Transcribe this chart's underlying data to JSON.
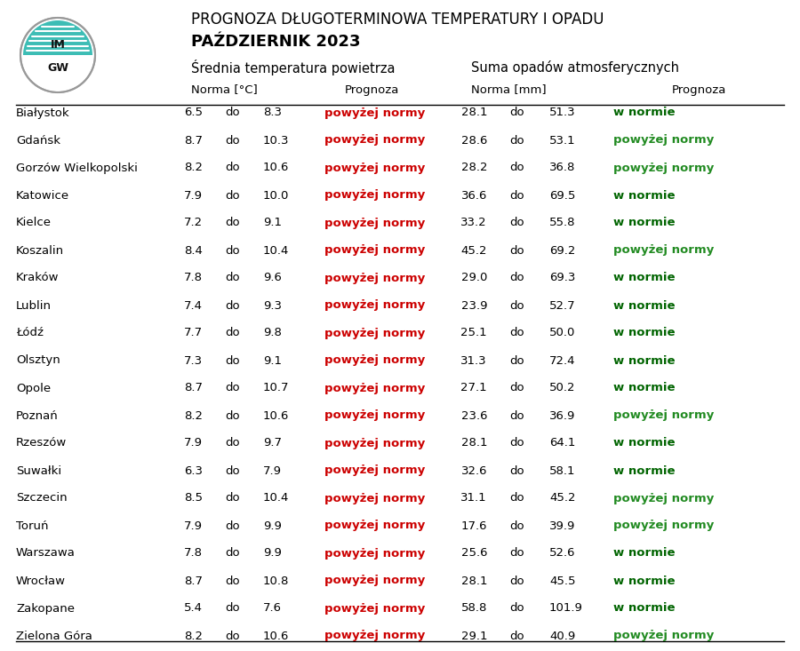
{
  "title_line1": "PROGNOZA DŁUGOTERMINOWA TEMPERATURY I OPADU",
  "title_line2": "PAŹDZIERNIK 2023",
  "subtitle_temp": "Średnia temperatura powietrza",
  "subtitle_precip": "Suma opadów atmosferycznych",
  "col_norma_temp": "Norma [°C]",
  "col_prognoza": "Prognoza",
  "col_norma_precip": "Norma [mm]",
  "col_prognoza2": "Prognoza",
  "cities": [
    "Białystok",
    "Gdańsk",
    "Gorzów Wielkopolski",
    "Katowice",
    "Kielce",
    "Koszalin",
    "Kraków",
    "Lublin",
    "Łódź",
    "Olsztyn",
    "Opole",
    "Poznań",
    "Rzeszów",
    "Suwałki",
    "Szczecin",
    "Toruń",
    "Warszawa",
    "Wrocław",
    "Zakopane",
    "Zielona Góra"
  ],
  "temp_low": [
    6.5,
    8.7,
    8.2,
    7.9,
    7.2,
    8.4,
    7.8,
    7.4,
    7.7,
    7.3,
    8.7,
    8.2,
    7.9,
    6.3,
    8.5,
    7.9,
    7.8,
    8.7,
    5.4,
    8.2
  ],
  "temp_high": [
    8.3,
    10.3,
    10.6,
    10.0,
    9.1,
    10.4,
    9.6,
    9.3,
    9.8,
    9.1,
    10.7,
    10.6,
    9.7,
    7.9,
    10.4,
    9.9,
    9.9,
    10.8,
    7.6,
    10.6
  ],
  "temp_prognoza": [
    "powyżej normy",
    "powyżej normy",
    "powyżej normy",
    "powyżej normy",
    "powyżej normy",
    "powyżej normy",
    "powyżej normy",
    "powyżej normy",
    "powyżej normy",
    "powyżej normy",
    "powyżej normy",
    "powyżej normy",
    "powyżej normy",
    "powyżej normy",
    "powyżej normy",
    "powyżej normy",
    "powyżej normy",
    "powyżej normy",
    "powyżej normy",
    "powyżej normy"
  ],
  "temp_prognoza_colors": [
    "#cc0000",
    "#cc0000",
    "#cc0000",
    "#cc0000",
    "#cc0000",
    "#cc0000",
    "#cc0000",
    "#cc0000",
    "#cc0000",
    "#cc0000",
    "#cc0000",
    "#cc0000",
    "#cc0000",
    "#cc0000",
    "#cc0000",
    "#cc0000",
    "#cc0000",
    "#cc0000",
    "#cc0000",
    "#cc0000"
  ],
  "precip_low": [
    28.1,
    28.6,
    28.2,
    36.6,
    33.2,
    45.2,
    29.0,
    23.9,
    25.1,
    31.3,
    27.1,
    23.6,
    28.1,
    32.6,
    31.1,
    17.6,
    25.6,
    28.1,
    58.8,
    29.1
  ],
  "precip_high": [
    51.3,
    53.1,
    36.8,
    69.5,
    55.8,
    69.2,
    69.3,
    52.7,
    50.0,
    72.4,
    50.2,
    36.9,
    64.1,
    58.1,
    45.2,
    39.9,
    52.6,
    45.5,
    101.9,
    40.9
  ],
  "precip_prognoza": [
    "w normie",
    "powyżej normy",
    "powyżej normy",
    "w normie",
    "w normie",
    "powyżej normy",
    "w normie",
    "w normie",
    "w normie",
    "w normie",
    "w normie",
    "powyżej normy",
    "w normie",
    "w normie",
    "powyżej normy",
    "powyżej normy",
    "w normie",
    "w normie",
    "w normie",
    "powyżej normy"
  ],
  "precip_prognoza_colors": [
    "#006400",
    "#228B22",
    "#228B22",
    "#006400",
    "#006400",
    "#228B22",
    "#006400",
    "#006400",
    "#006400",
    "#006400",
    "#006400",
    "#228B22",
    "#006400",
    "#006400",
    "#228B22",
    "#228B22",
    "#006400",
    "#006400",
    "#006400",
    "#228B22"
  ],
  "w_normie_color": "#006400",
  "powyzej_color": "#228B22",
  "background_color": "#ffffff"
}
